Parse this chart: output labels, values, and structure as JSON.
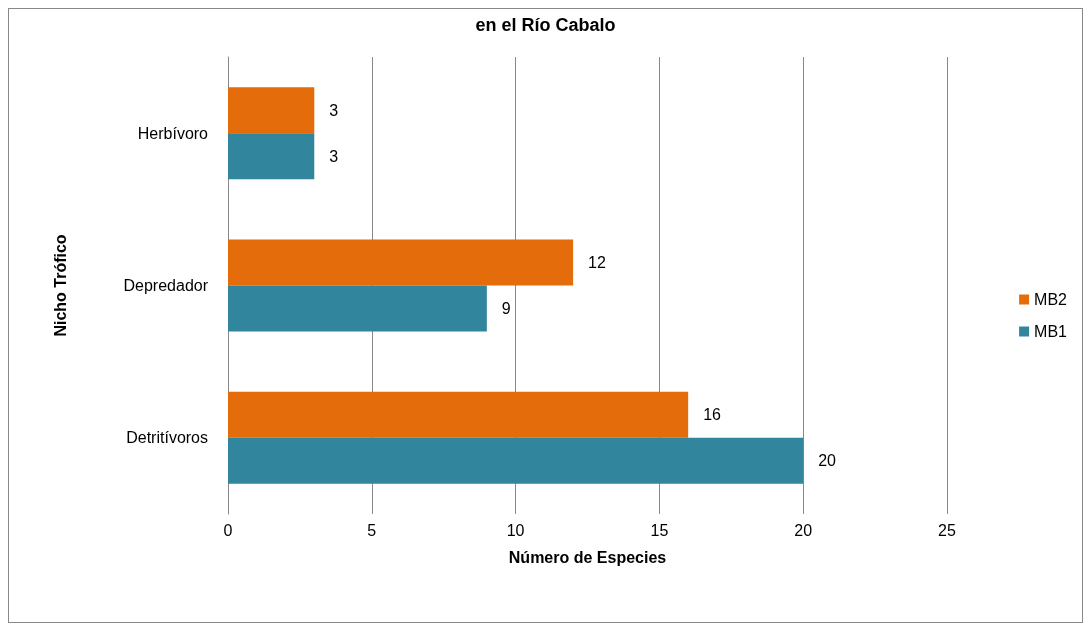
{
  "chart_data": {
    "type": "bar",
    "orientation": "horizontal",
    "title": "en el Río Cabalo",
    "xlabel": "Número de Especies",
    "ylabel": "Nicho Trófico",
    "categories": [
      "Herbívoro",
      "Depredador",
      "Detritívoros"
    ],
    "series": [
      {
        "name": "MB2",
        "color": "#e46c0a",
        "values": [
          3,
          12,
          16
        ]
      },
      {
        "name": "MB1",
        "color": "#31859c",
        "values": [
          3,
          9,
          20
        ]
      }
    ],
    "xlim": [
      0,
      25
    ],
    "xticks": [
      0,
      5,
      10,
      15,
      20,
      25
    ],
    "grid": "x",
    "legend": "right",
    "data_labels": true
  }
}
